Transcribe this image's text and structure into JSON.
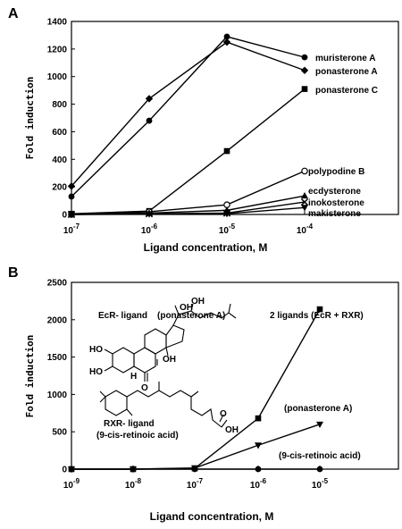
{
  "chart_data": [
    {
      "panel": "A",
      "type": "line",
      "xlabel": "Ligand concentration, M",
      "ylabel": "Fold induction",
      "x_ticks": [
        "10-7",
        "10-6",
        "10-5",
        "10-4"
      ],
      "x_exponents": [
        -7,
        -6,
        -5,
        -4
      ],
      "ylim": [
        0,
        1400
      ],
      "y_ticks": [
        0,
        200,
        400,
        600,
        800,
        1000,
        1200,
        1400
      ],
      "grid": false,
      "series": [
        {
          "name": "muristerone A",
          "marker": "circle",
          "x": [
            -7,
            -6,
            -5,
            -4
          ],
          "values": [
            130,
            680,
            1290,
            1140
          ]
        },
        {
          "name": "ponasterone A",
          "marker": "diamond",
          "x": [
            -7,
            -6,
            -5,
            -4
          ],
          "values": [
            205,
            840,
            1250,
            1045
          ]
        },
        {
          "name": "ponasterone C",
          "marker": "square",
          "x": [
            -7,
            -6,
            -5,
            -4
          ],
          "values": [
            5,
            25,
            460,
            910
          ]
        },
        {
          "name": "polypodine B",
          "marker": "open-circle",
          "x": [
            -7,
            -6,
            -5,
            -4
          ],
          "values": [
            0,
            20,
            70,
            315
          ]
        },
        {
          "name": "ecdysterone",
          "marker": "triangle",
          "x": [
            -7,
            -6,
            -5,
            -4
          ],
          "values": [
            0,
            10,
            30,
            135
          ]
        },
        {
          "name": "inokosterone",
          "marker": "x",
          "x": [
            -7,
            -6,
            -5,
            -4
          ],
          "values": [
            0,
            5,
            10,
            90
          ]
        },
        {
          "name": "makisterone",
          "marker": "triangle-down",
          "x": [
            -7,
            -6,
            -5,
            -4
          ],
          "values": [
            0,
            3,
            5,
            50
          ]
        }
      ]
    },
    {
      "panel": "B",
      "type": "line",
      "xlabel": "Ligand concentration, M",
      "ylabel": "Fold induction",
      "x_ticks": [
        "10-9",
        "10-8",
        "10-7",
        "10-6",
        "10-5"
      ],
      "x_exponents": [
        -9,
        -8,
        -7,
        -6,
        -5
      ],
      "ylim": [
        0,
        2500
      ],
      "y_ticks": [
        0,
        500,
        1000,
        1500,
        2000,
        2500
      ],
      "grid": false,
      "annotations": {
        "ecr_ligand": "EcR- ligand",
        "ecr_ligand_name": "(ponasterone A)",
        "two_ligands": "2 ligands (EcR + RXR)",
        "rxr_ligand": "RXR- ligand",
        "rxr_ligand_name": "(9-cis-retinoic acid)"
      },
      "structure_labels": {
        "oh": "OH",
        "ho": "HO",
        "h": "H",
        "o": "O",
        "cooh": "OH"
      },
      "series": [
        {
          "name": "",
          "marker": "square",
          "x": [
            -9,
            -8,
            -7,
            -6,
            -5
          ],
          "values": [
            0,
            0,
            10,
            680,
            2140
          ]
        },
        {
          "name": "(ponasterone A)",
          "marker": "triangle-down",
          "x": [
            -9,
            -8,
            -7,
            -6,
            -5
          ],
          "values": [
            0,
            0,
            15,
            320,
            600
          ]
        },
        {
          "name": "(9-cis-retinoic acid)",
          "marker": "circle",
          "x": [
            -9,
            -8,
            -7,
            -6,
            -5
          ],
          "values": [
            0,
            0,
            0,
            0,
            0
          ]
        }
      ]
    }
  ]
}
